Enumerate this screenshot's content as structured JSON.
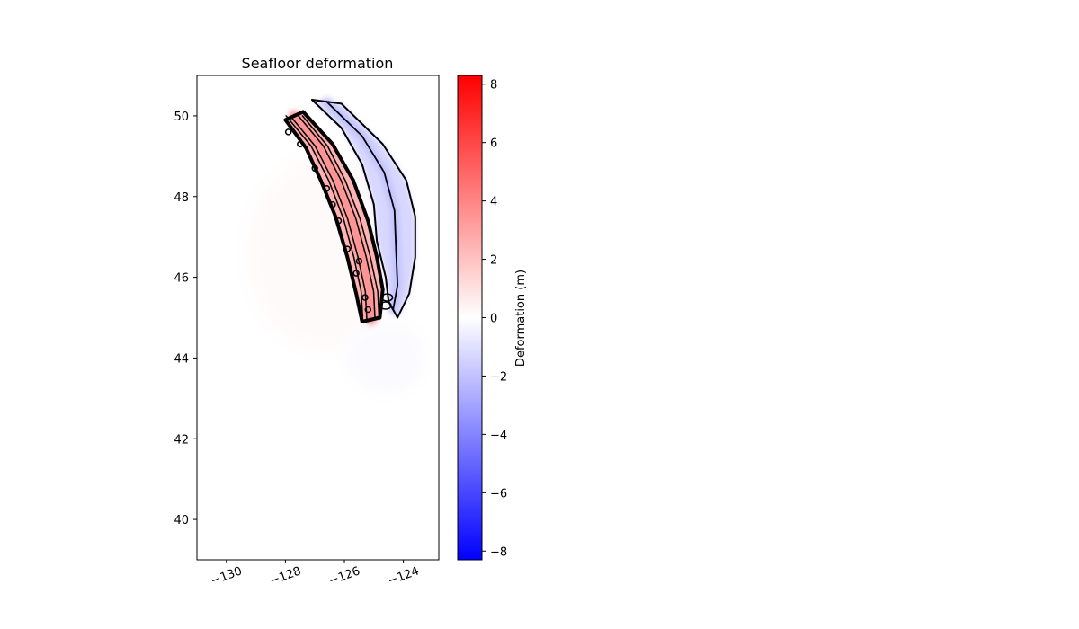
{
  "chart_data": {
    "type": "heatmap",
    "title": "Seafloor deformation",
    "xlabel": "",
    "ylabel": "",
    "xlim": [
      -131,
      -122.8
    ],
    "ylim": [
      39,
      51
    ],
    "xticks": [
      -130,
      -128,
      -126,
      -124
    ],
    "xtick_labels": [
      "−130",
      "−128",
      "−126",
      "−124"
    ],
    "yticks": [
      40,
      42,
      44,
      46,
      48,
      50
    ],
    "ytick_labels": [
      "40",
      "42",
      "44",
      "46",
      "48",
      "50"
    ],
    "colormap": "bwr",
    "colors": {
      "negative": "#0000ff",
      "zero": "#ffffff",
      "positive": "#ff0000",
      "contour": "#000000"
    },
    "colorbar": {
      "label": "Deformation (m)",
      "range": [
        -8.3,
        8.3
      ],
      "ticks": [
        -8,
        -6,
        -4,
        -2,
        0,
        2,
        4,
        6,
        8
      ],
      "tick_labels": [
        "−8",
        "−6",
        "−4",
        "−2",
        "0",
        "2",
        "4",
        "6",
        "8"
      ]
    },
    "uplift_zone": {
      "approx_max_deformation": 3.5,
      "west_edge": [
        [
          -128.0,
          49.9
        ],
        [
          -127.3,
          49.2
        ],
        [
          -126.8,
          48.4
        ],
        [
          -126.3,
          47.5
        ],
        [
          -125.9,
          46.5
        ],
        [
          -125.6,
          45.6
        ],
        [
          -125.4,
          44.9
        ]
      ],
      "east_edge": [
        [
          -124.8,
          45.0
        ],
        [
          -124.7,
          45.7
        ],
        [
          -124.9,
          46.5
        ],
        [
          -125.2,
          47.4
        ],
        [
          -125.7,
          48.4
        ],
        [
          -126.4,
          49.3
        ],
        [
          -127.4,
          50.1
        ]
      ]
    },
    "subsidence_zone": {
      "approx_min_deformation": -1.3,
      "west_edge": [
        [
          -127.1,
          50.4
        ],
        [
          -126.1,
          49.7
        ],
        [
          -125.4,
          48.8
        ],
        [
          -125.0,
          47.8
        ],
        [
          -124.9,
          46.9
        ],
        [
          -124.6,
          46.0
        ],
        [
          -124.5,
          45.4
        ]
      ],
      "east_edge": [
        [
          -124.2,
          45.0
        ],
        [
          -123.8,
          45.6
        ],
        [
          -123.6,
          46.5
        ],
        [
          -123.6,
          47.5
        ],
        [
          -123.9,
          48.4
        ],
        [
          -124.7,
          49.3
        ],
        [
          -126.1,
          50.3
        ]
      ]
    }
  }
}
